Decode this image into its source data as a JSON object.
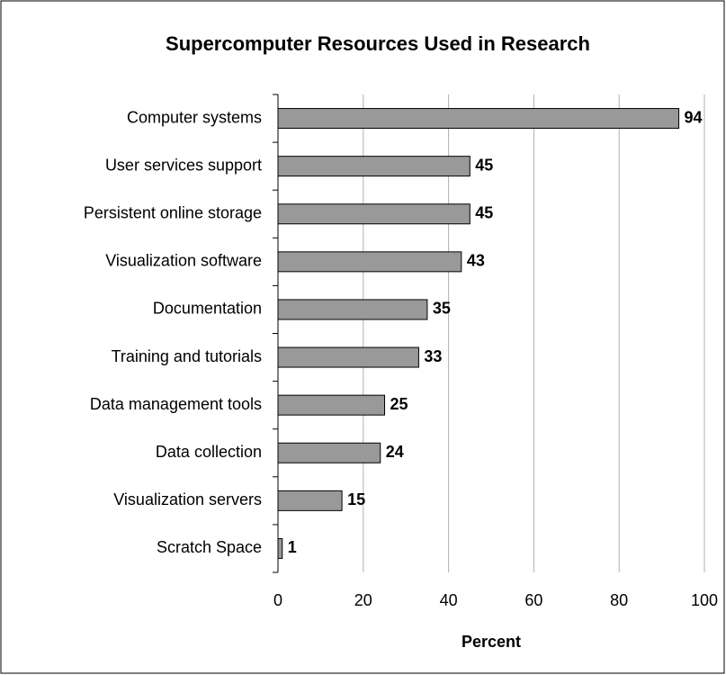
{
  "chart_data": {
    "type": "bar",
    "orientation": "horizontal",
    "title": "Supercomputer Resources Used in Research",
    "categories": [
      "Computer systems",
      "User services support",
      "Persistent online storage",
      "Visualization software",
      "Documentation",
      "Training and tutorials",
      "Data management tools",
      "Data collection",
      "Visualization servers",
      "Scratch Space"
    ],
    "values": [
      94,
      45,
      45,
      43,
      35,
      33,
      25,
      24,
      15,
      1
    ],
    "color": "#999999",
    "xlabel": "Percent",
    "xlim": [
      0,
      100
    ],
    "xticks": [
      0,
      20,
      40,
      60,
      80,
      100
    ],
    "grid": true
  }
}
